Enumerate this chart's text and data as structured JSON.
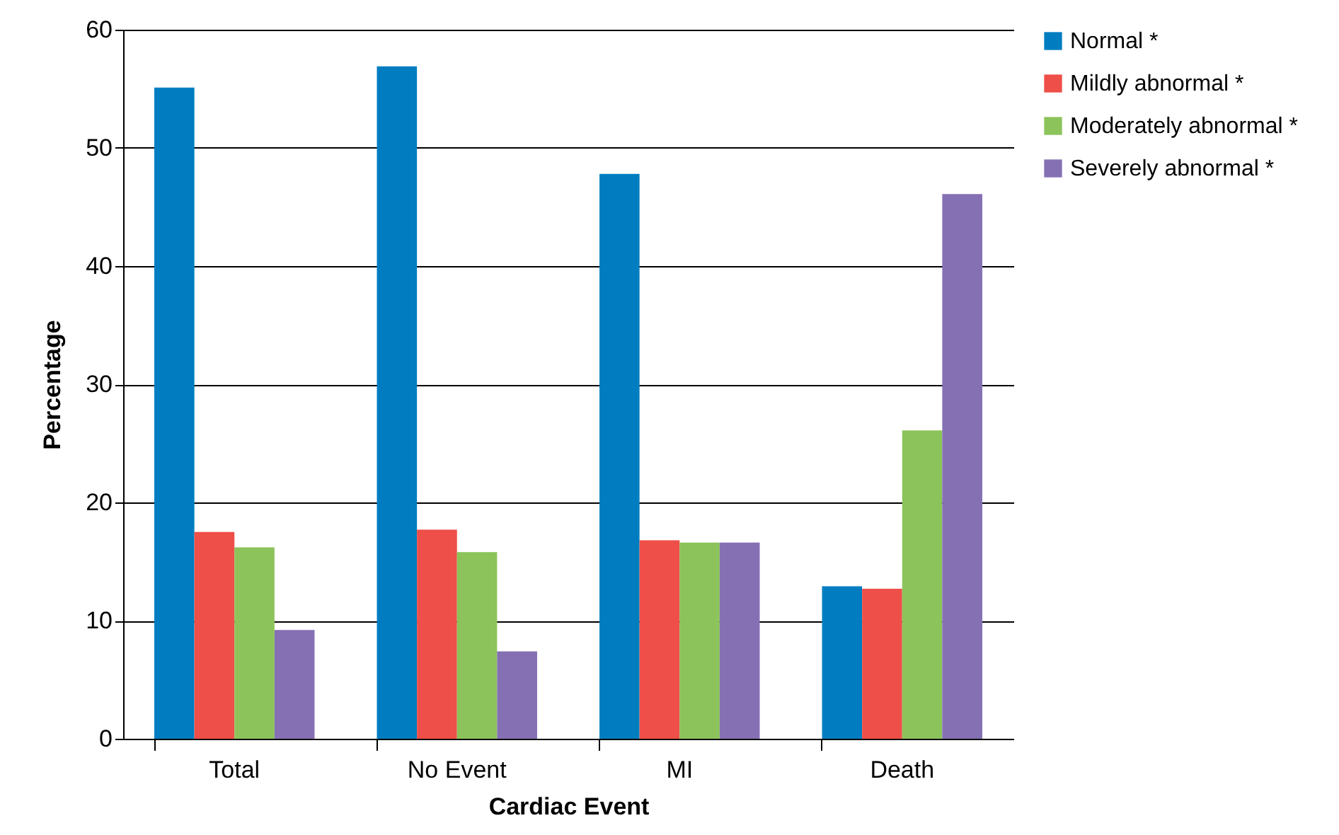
{
  "chart_data": {
    "type": "bar",
    "xlabel": "Cardiac Event",
    "ylabel": "Percentage",
    "categories": [
      "Total",
      "No Event",
      "MI",
      "Death"
    ],
    "series": [
      {
        "name": "Normal *",
        "color": "#007dc0",
        "values": [
          55.1,
          56.9,
          47.8,
          12.9
        ]
      },
      {
        "name": "Mildly abnormal *",
        "color": "#ee4f48",
        "values": [
          17.5,
          17.7,
          16.8,
          12.7
        ]
      },
      {
        "name": "Moderately abnormal *",
        "color": "#8cc35a",
        "values": [
          16.2,
          15.8,
          16.6,
          26.1
        ]
      },
      {
        "name": "Severely abnormal *",
        "color": "#8570b4",
        "values": [
          9.2,
          7.4,
          16.6,
          46.1
        ]
      }
    ],
    "ylim": [
      0,
      60
    ],
    "yticks": [
      0,
      10,
      20,
      30,
      40,
      50,
      60
    ],
    "grid": "y",
    "legend": "right"
  }
}
